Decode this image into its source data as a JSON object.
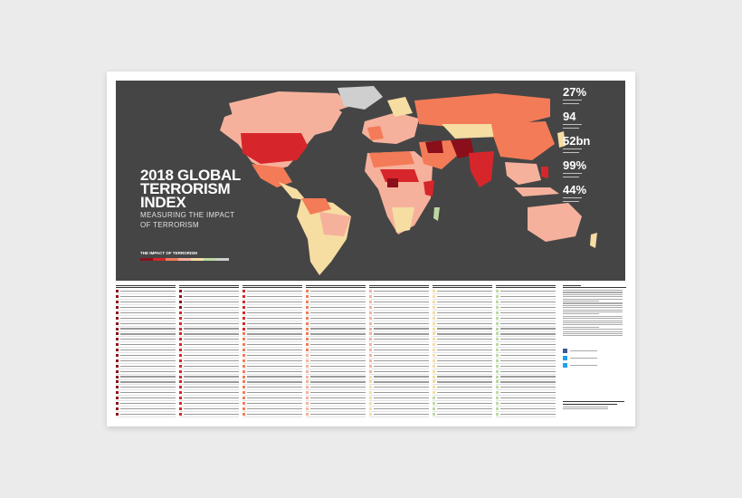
{
  "poster": {
    "title_line1": "2018 GLOBAL",
    "title_line2": "TERRORISM",
    "title_line3": "INDEX",
    "subtitle_line1": "MEASURING THE IMPACT",
    "subtitle_line2": "OF TERRORISM",
    "legend_title": "THE IMPACT OF TERRORISM"
  },
  "stats": [
    {
      "value": "27%"
    },
    {
      "value": "94"
    },
    {
      "value": "52bn"
    },
    {
      "value": "99%"
    },
    {
      "value": "44%"
    }
  ],
  "colors": {
    "map_background": "#454545",
    "accent": "#6ecbe0",
    "very_high": "#8b0f1a",
    "high": "#d7262b",
    "medium": "#f47b57",
    "low": "#f6b19c",
    "very_low": "#f6dda2",
    "no_impact": "#bcd9a3",
    "not_included": "#cfcfcf"
  }
}
